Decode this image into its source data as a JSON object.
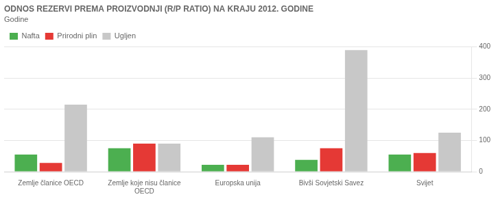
{
  "chart_data": {
    "type": "bar",
    "title": "ODNOS REZERVI PREMA PROIZVODNJI (R/P RATIO) NA KRAJU 2012. GODINE",
    "subtitle": "Godine",
    "categories": [
      "Zemlje članice OECD",
      "Zemlje koje nisu članice\nOECD",
      "Europska unija",
      "Bivši Sovjetski Savez",
      "Svijet"
    ],
    "series": [
      {
        "name": "Nafta",
        "color": "#4caf50",
        "values": [
          55,
          75,
          22,
          38,
          55
        ]
      },
      {
        "name": "Prirodni plin",
        "color": "#e53935",
        "values": [
          28,
          90,
          22,
          75,
          60
        ]
      },
      {
        "name": "Ugljen",
        "color": "#c8c8c8",
        "values": [
          215,
          90,
          110,
          390,
          125
        ]
      }
    ],
    "ylim": [
      0,
      400
    ],
    "yticks": [
      0,
      100,
      200,
      300,
      400
    ],
    "grid": true,
    "legend": "upper left"
  }
}
